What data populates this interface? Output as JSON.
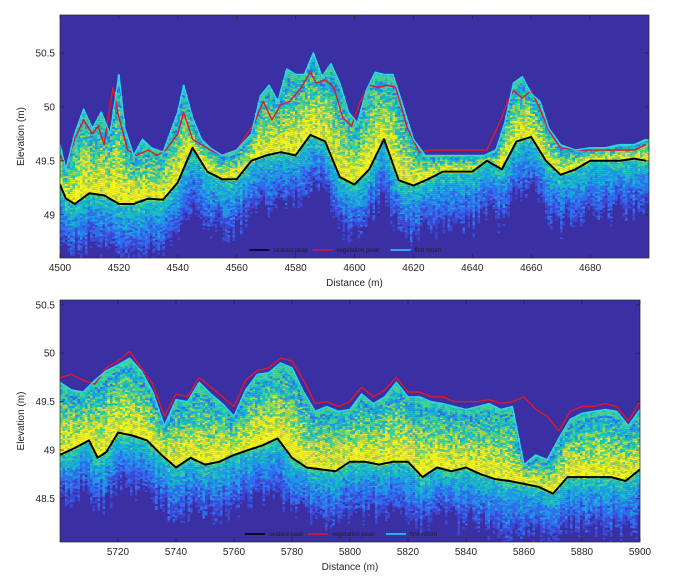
{
  "colors": {
    "background": "#3a2fa3",
    "seabed": "#000000",
    "vegetation": "#e0192a",
    "first_return": "#2ad4ff",
    "colormap": [
      "#3a2fa3",
      "#3b49d6",
      "#2f70f0",
      "#1f9ce6",
      "#17c2c4",
      "#44d68f",
      "#a6d84a",
      "#e9e62d",
      "#f9fa14"
    ]
  },
  "chart_data": [
    {
      "type": "heatmap",
      "xlabel": "Distance (m)",
      "ylabel": "Elevation (m)",
      "xlim": [
        4500,
        4700
      ],
      "ylim": [
        48.6,
        50.85
      ],
      "xticks": [
        4500,
        4520,
        4540,
        4560,
        4580,
        4600,
        4620,
        4640,
        4660,
        4680
      ],
      "yticks": [
        49,
        49.5,
        50,
        50.5
      ],
      "ytick_labels": [
        "49",
        "49.5",
        "50",
        "50.5"
      ],
      "legend": {
        "position": "bottom-center",
        "entries": [
          "seabed peak",
          "vegetation peak",
          "first return"
        ]
      },
      "series": [
        {
          "name": "seabed peak",
          "x": [
            4500,
            4502,
            4505,
            4510,
            4515,
            4520,
            4525,
            4530,
            4535,
            4540,
            4545,
            4550,
            4555,
            4560,
            4565,
            4570,
            4575,
            4580,
            4585,
            4590,
            4595,
            4600,
            4605,
            4610,
            4615,
            4620,
            4625,
            4630,
            4635,
            4640,
            4645,
            4650,
            4655,
            4660,
            4665,
            4670,
            4675,
            4680,
            4685,
            4690,
            4695,
            4699
          ],
          "y": [
            49.28,
            49.15,
            49.1,
            49.2,
            49.18,
            49.1,
            49.1,
            49.15,
            49.14,
            49.3,
            49.62,
            49.4,
            49.33,
            49.33,
            49.5,
            49.55,
            49.58,
            49.55,
            49.74,
            49.68,
            49.35,
            49.28,
            49.42,
            49.7,
            49.32,
            49.27,
            49.33,
            49.4,
            49.4,
            49.4,
            49.5,
            49.42,
            49.68,
            49.72,
            49.5,
            49.37,
            49.42,
            49.5,
            49.5,
            49.5,
            49.52,
            49.5
          ]
        },
        {
          "name": "vegetation peak",
          "x": [
            4500,
            4502,
            4505,
            4508,
            4511,
            4513,
            4515,
            4518,
            4520,
            4523,
            4526,
            4530,
            4533,
            4536,
            4540,
            4542,
            4545,
            4548,
            4551,
            4555,
            4560,
            4566,
            4569,
            4572,
            4575,
            4578,
            4582,
            4585,
            4587,
            4590,
            4593,
            4596,
            4599,
            4602,
            4605,
            4608,
            4611,
            4614,
            4618,
            4622,
            4626,
            4630,
            4635,
            4640,
            4645,
            4650,
            4652,
            4654,
            4657,
            4660,
            4663,
            4666,
            4670,
            4675,
            4680,
            4685,
            4690,
            4695,
            4699
          ],
          "y": [
            49.55,
            49.45,
            49.7,
            49.88,
            49.75,
            49.82,
            49.65,
            50.18,
            49.9,
            49.6,
            49.55,
            49.6,
            49.55,
            49.6,
            49.75,
            49.95,
            49.7,
            49.65,
            49.6,
            49.55,
            49.6,
            49.85,
            50.05,
            49.88,
            50.02,
            50.05,
            50.18,
            50.32,
            50.22,
            50.25,
            50.18,
            49.9,
            49.82,
            50.05,
            50.2,
            50.18,
            50.2,
            50.18,
            49.8,
            49.58,
            49.6,
            49.6,
            49.6,
            49.6,
            49.6,
            49.9,
            50.05,
            50.15,
            50.08,
            50.15,
            49.98,
            49.78,
            49.62,
            49.6,
            49.6,
            49.6,
            49.6,
            49.6,
            49.65
          ]
        },
        {
          "name": "first return",
          "x": [
            4500,
            4502,
            4505,
            4508,
            4511,
            4514,
            4517,
            4520,
            4522,
            4525,
            4528,
            4531,
            4535,
            4540,
            4542,
            4545,
            4548,
            4551,
            4555,
            4560,
            4565,
            4568,
            4571,
            4574,
            4577,
            4580,
            4583,
            4586,
            4589,
            4592,
            4595,
            4598,
            4601,
            4604,
            4607,
            4610,
            4613,
            4616,
            4620,
            4624,
            4628,
            4632,
            4636,
            4640,
            4644,
            4648,
            4651,
            4654,
            4657,
            4660,
            4663,
            4666,
            4670,
            4675,
            4680,
            4685,
            4690,
            4695,
            4699
          ],
          "y": [
            49.65,
            49.42,
            49.75,
            49.98,
            49.8,
            49.95,
            49.75,
            50.3,
            49.8,
            49.55,
            49.7,
            49.62,
            49.58,
            49.95,
            50.2,
            49.9,
            49.7,
            49.62,
            49.55,
            49.6,
            49.75,
            50.1,
            50.2,
            50.05,
            50.35,
            50.3,
            50.3,
            50.5,
            50.28,
            50.4,
            50.22,
            49.95,
            49.85,
            50.15,
            50.32,
            50.3,
            50.3,
            50.05,
            49.7,
            49.55,
            49.55,
            49.55,
            49.55,
            49.55,
            49.55,
            49.6,
            49.85,
            50.22,
            50.28,
            50.12,
            50.05,
            49.8,
            49.65,
            49.6,
            49.62,
            49.62,
            49.65,
            49.65,
            49.7
          ]
        }
      ]
    },
    {
      "type": "heatmap",
      "xlabel": "Distance (m)",
      "ylabel": "Elevation (m)",
      "xlim": [
        5700,
        5900
      ],
      "ylim": [
        48.05,
        50.55
      ],
      "xticks": [
        5720,
        5740,
        5760,
        5780,
        5800,
        5820,
        5840,
        5860,
        5880,
        5900
      ],
      "yticks": [
        48.5,
        49,
        49.5,
        50,
        50.5
      ],
      "ytick_labels": [
        "48.5",
        "49",
        "49.5",
        "50",
        "50.5"
      ],
      "legend": {
        "position": "bottom-center",
        "entries": [
          "seabed peak",
          "vegetation peak",
          "first return"
        ]
      },
      "series": [
        {
          "name": "seabed peak",
          "x": [
            5700,
            5705,
            5710,
            5713,
            5716,
            5720,
            5725,
            5730,
            5735,
            5740,
            5745,
            5750,
            5755,
            5760,
            5765,
            5770,
            5775,
            5780,
            5785,
            5790,
            5795,
            5800,
            5805,
            5810,
            5815,
            5820,
            5825,
            5830,
            5835,
            5840,
            5845,
            5850,
            5855,
            5860,
            5865,
            5870,
            5875,
            5880,
            5885,
            5890,
            5895,
            5900
          ],
          "y": [
            48.95,
            49.02,
            49.1,
            48.92,
            48.98,
            49.18,
            49.15,
            49.1,
            48.95,
            48.82,
            48.92,
            48.85,
            48.88,
            48.95,
            49.0,
            49.05,
            49.12,
            48.92,
            48.82,
            48.8,
            48.78,
            48.88,
            48.88,
            48.85,
            48.88,
            48.88,
            48.72,
            48.82,
            48.78,
            48.82,
            48.75,
            48.7,
            48.68,
            48.65,
            48.62,
            48.55,
            48.72,
            48.72,
            48.72,
            48.72,
            48.68,
            48.8
          ]
        },
        {
          "name": "vegetation peak",
          "x": [
            5700,
            5704,
            5708,
            5712,
            5716,
            5720,
            5724,
            5728,
            5732,
            5736,
            5740,
            5744,
            5748,
            5752,
            5756,
            5760,
            5764,
            5768,
            5772,
            5776,
            5780,
            5784,
            5788,
            5792,
            5796,
            5800,
            5804,
            5808,
            5812,
            5816,
            5820,
            5824,
            5828,
            5832,
            5836,
            5840,
            5844,
            5848,
            5852,
            5856,
            5860,
            5864,
            5868,
            5872,
            5876,
            5880,
            5884,
            5888,
            5892,
            5896,
            5900
          ],
          "y": [
            49.75,
            49.78,
            49.72,
            49.68,
            49.85,
            49.92,
            50.02,
            49.85,
            49.68,
            49.35,
            49.58,
            49.55,
            49.75,
            49.65,
            49.55,
            49.45,
            49.72,
            49.82,
            49.85,
            49.95,
            49.92,
            49.72,
            49.48,
            49.5,
            49.45,
            49.5,
            49.65,
            49.55,
            49.62,
            49.75,
            49.6,
            49.6,
            49.55,
            49.55,
            49.5,
            49.5,
            49.5,
            49.52,
            49.48,
            49.5,
            49.55,
            49.42,
            49.35,
            49.2,
            49.4,
            49.45,
            49.45,
            49.48,
            49.45,
            49.3,
            49.5
          ]
        },
        {
          "name": "first return",
          "x": [
            5700,
            5704,
            5708,
            5712,
            5716,
            5720,
            5724,
            5728,
            5732,
            5736,
            5740,
            5744,
            5748,
            5752,
            5756,
            5760,
            5764,
            5768,
            5772,
            5776,
            5780,
            5784,
            5788,
            5792,
            5796,
            5800,
            5804,
            5808,
            5812,
            5816,
            5820,
            5824,
            5828,
            5832,
            5836,
            5840,
            5844,
            5848,
            5852,
            5856,
            5860,
            5864,
            5868,
            5872,
            5876,
            5880,
            5884,
            5888,
            5892,
            5896,
            5900
          ],
          "y": [
            49.7,
            49.62,
            49.6,
            49.72,
            49.82,
            49.88,
            49.95,
            49.82,
            49.6,
            49.25,
            49.52,
            49.5,
            49.7,
            49.58,
            49.48,
            49.35,
            49.62,
            49.78,
            49.8,
            49.9,
            49.85,
            49.6,
            49.4,
            49.45,
            49.4,
            49.42,
            49.58,
            49.48,
            49.55,
            49.7,
            49.55,
            49.55,
            49.5,
            49.48,
            49.45,
            49.42,
            49.45,
            49.48,
            49.42,
            49.45,
            48.85,
            48.95,
            48.9,
            49.12,
            49.32,
            49.38,
            49.4,
            49.42,
            49.4,
            49.25,
            49.42
          ]
        }
      ]
    }
  ]
}
